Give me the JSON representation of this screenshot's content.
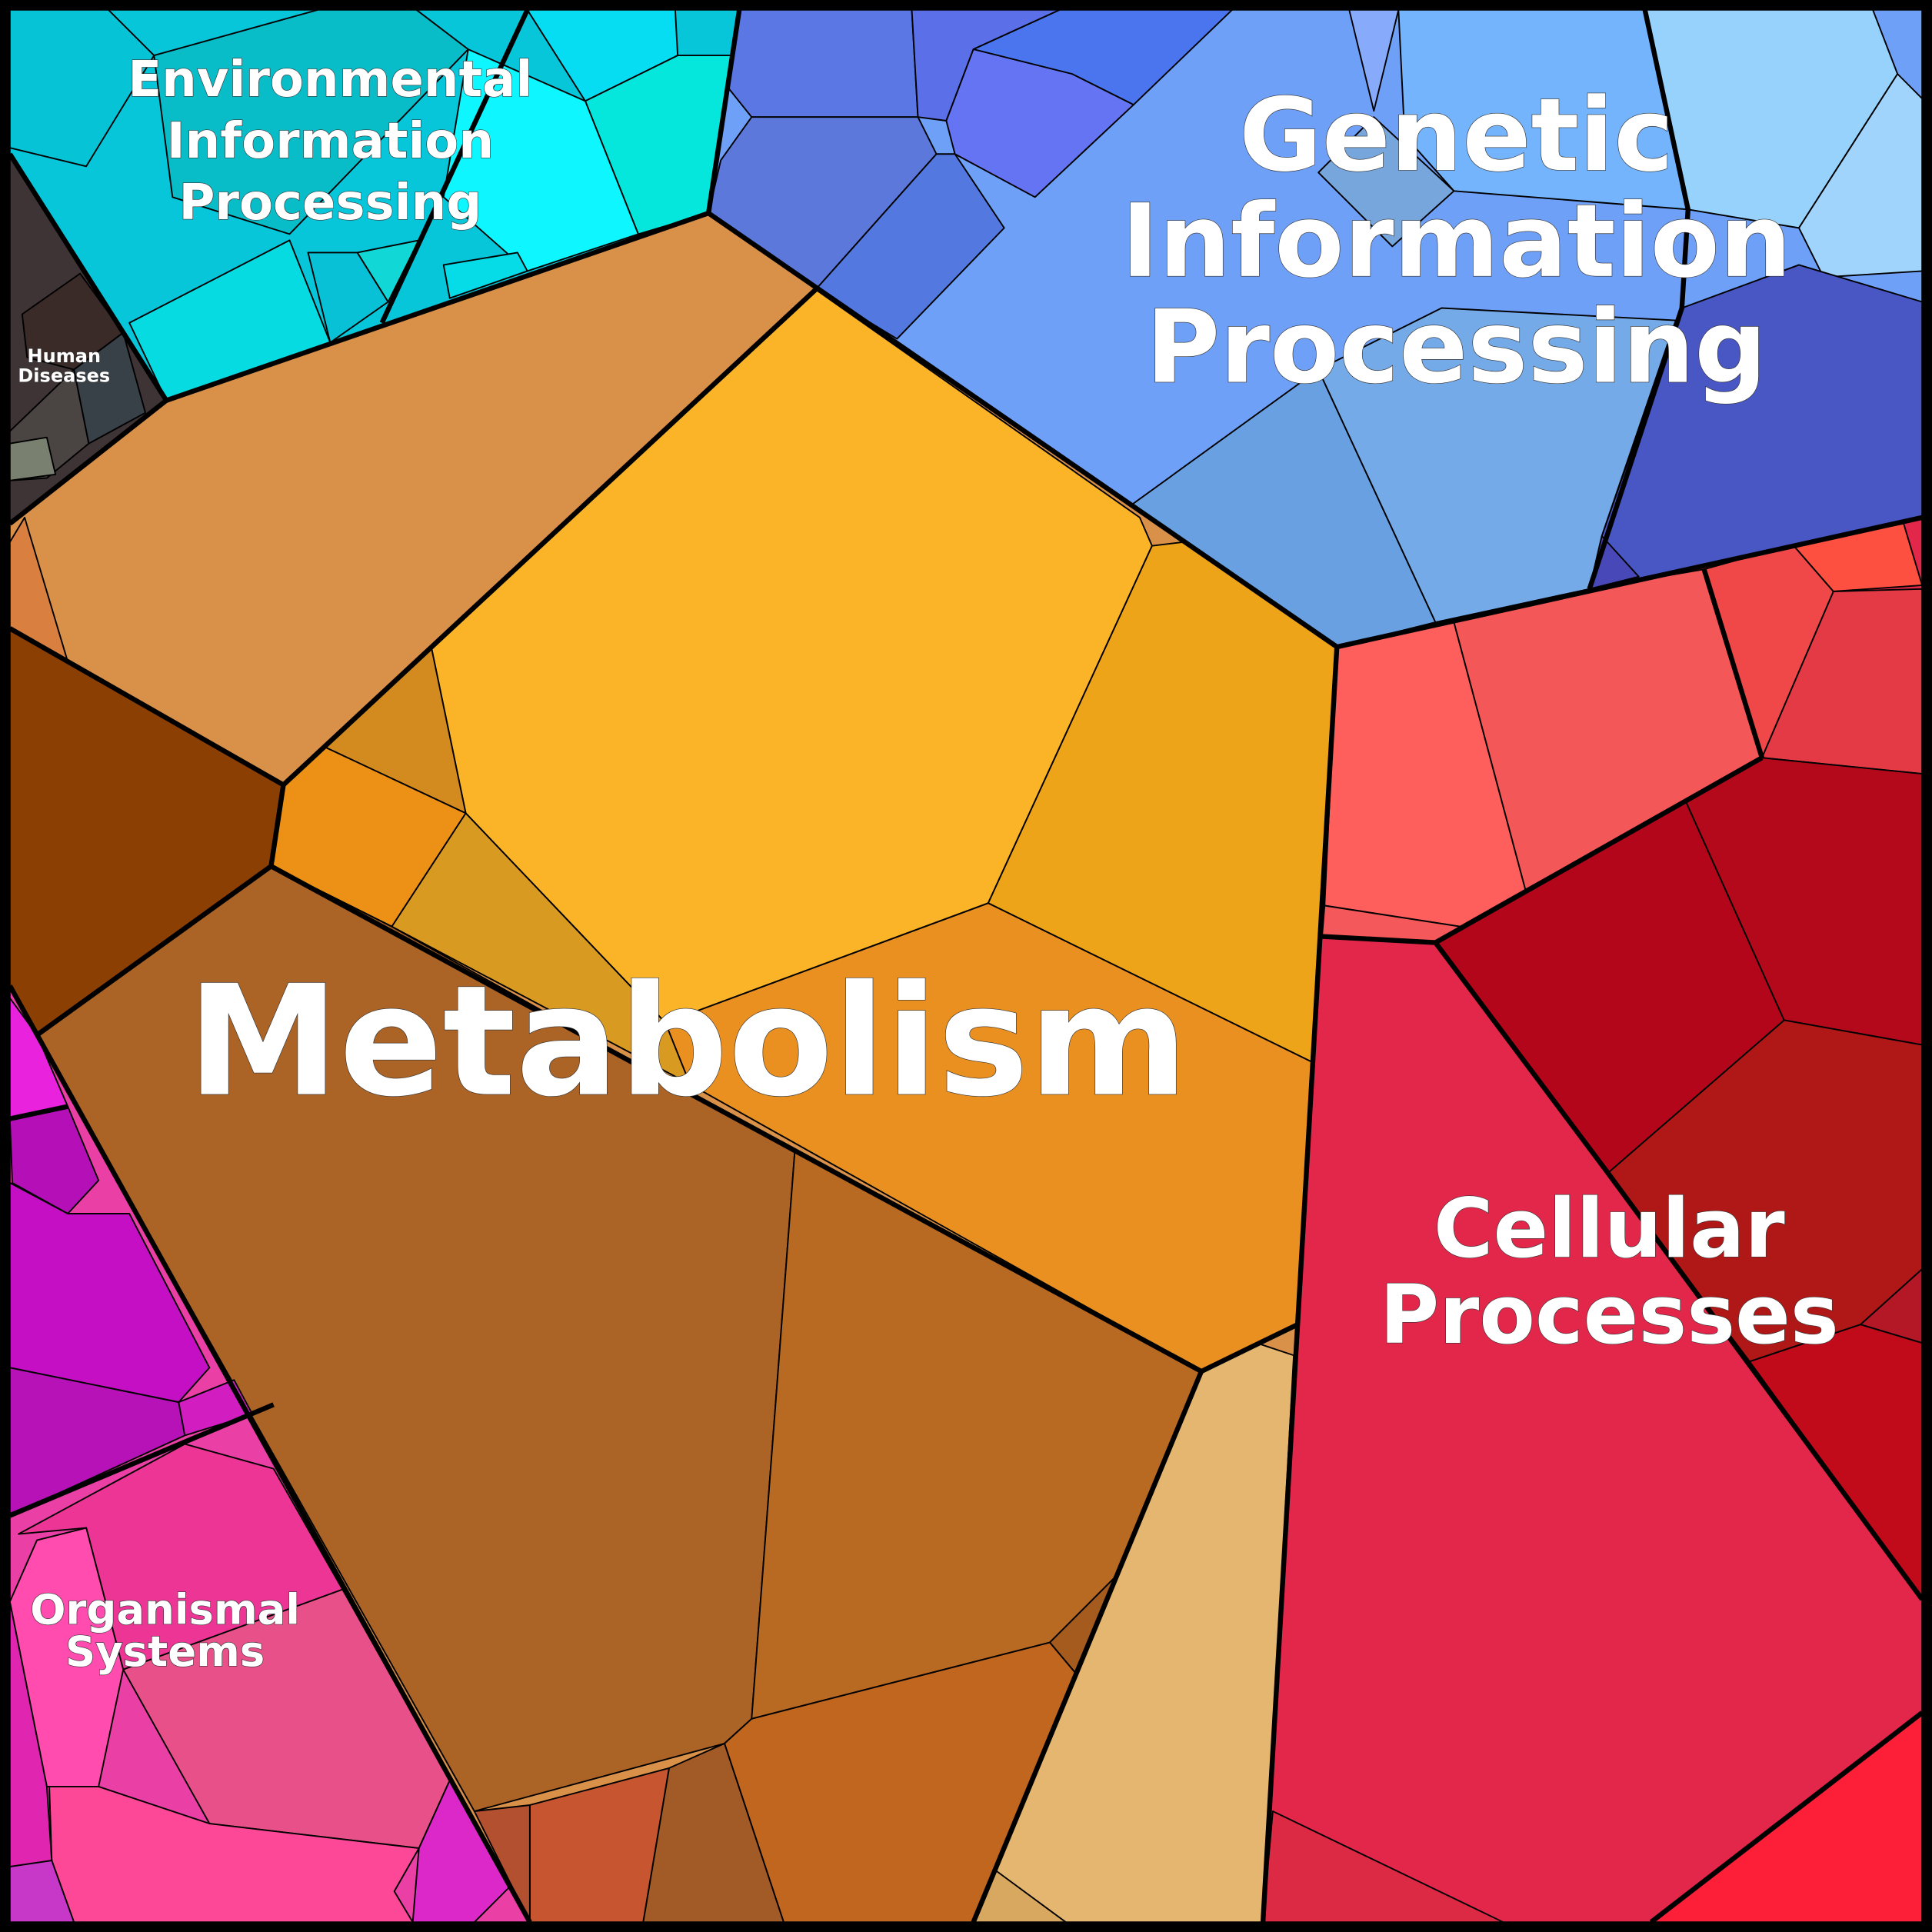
{
  "regions": [
    {
      "label": "Environmental\nInformation\nProcessing"
    },
    {
      "label": "Genetic\nInformation\nProcessing"
    },
    {
      "label": "Human\nDiseases"
    },
    {
      "label": "Metabolism"
    },
    {
      "label": "Cellular\nProcesses"
    },
    {
      "label": "Organismal\nSystems"
    }
  ]
}
